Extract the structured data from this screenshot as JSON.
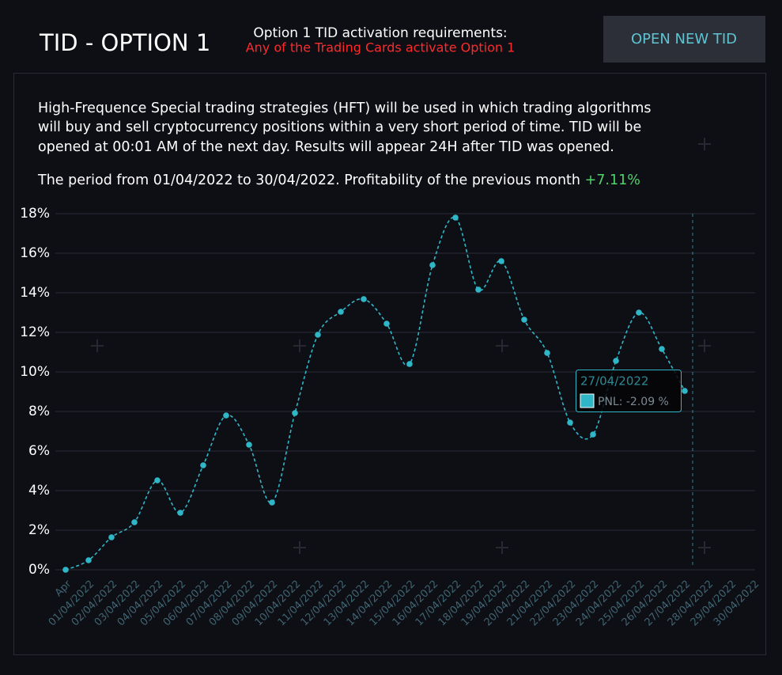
{
  "header": {
    "title": "TID - OPTION 1",
    "requirements_title": "Option 1 TID activation requirements:",
    "requirements_text": "Any of the Trading Cards activate Option 1",
    "button": "OPEN NEW TID"
  },
  "description": {
    "lines": [
      "High-Frequence Special trading strategies (HFT) will be used in which trading algorithms",
      "will buy and sell cryptocurrency positions within a very short period of time. TID will be",
      "opened at 00:01 AM of the next day. Results will appear 24H after TID was opened."
    ],
    "period": "The period from 01/04/2022 to 30/04/2022. Profitability of the previous month",
    "profitability": "+7.11%"
  },
  "chart_data": {
    "type": "line",
    "categories": [
      "Apr",
      "01/04/2022",
      "02/04/2022",
      "03/04/2022",
      "04/04/2022",
      "05/04/2022",
      "06/04/2022",
      "07/04/2022",
      "08/04/2022",
      "09/04/2022",
      "10/04/2022",
      "11/04/2022",
      "12/04/2022",
      "13/04/2022",
      "14/04/2022",
      "15/04/2022",
      "16/04/2022",
      "17/04/2022",
      "18/04/2022",
      "19/04/2022",
      "20/04/2022",
      "21/04/2022",
      "22/04/2022",
      "23/04/2022",
      "24/04/2022",
      "25/04/2022",
      "26/04/2022",
      "27/04/2022",
      "28/04/2022",
      "29/04/2022",
      "30/04/2022"
    ],
    "series": [
      {
        "name": "PNL",
        "color": "#2fb7c8",
        "values": [
          0,
          0.48,
          1.64,
          2.4,
          4.52,
          2.88,
          5.28,
          7.8,
          6.32,
          3.4,
          7.92,
          11.88,
          13.04,
          13.68,
          12.44,
          10.4,
          15.4,
          17.8,
          14.16,
          15.6,
          12.64,
          10.96,
          7.44,
          6.84,
          10.56,
          13.0,
          11.16,
          9.04,
          null,
          null,
          null
        ]
      }
    ],
    "ylim": [
      0,
      18
    ],
    "yticks": [
      {
        "value": 0,
        "label": "0%"
      },
      {
        "value": 2,
        "label": "2%"
      },
      {
        "value": 4,
        "label": "4%"
      },
      {
        "value": 6,
        "label": "6%"
      },
      {
        "value": 8,
        "label": "8%"
      },
      {
        "value": 10,
        "label": "10%"
      },
      {
        "value": 12,
        "label": "12%"
      },
      {
        "value": 14,
        "label": "14%"
      },
      {
        "value": 16,
        "label": "16%"
      },
      {
        "value": 18,
        "label": "18%"
      }
    ],
    "grid": true,
    "tooltip": {
      "date": "27/04/2022",
      "label": "PNL: -2.09 %"
    }
  }
}
